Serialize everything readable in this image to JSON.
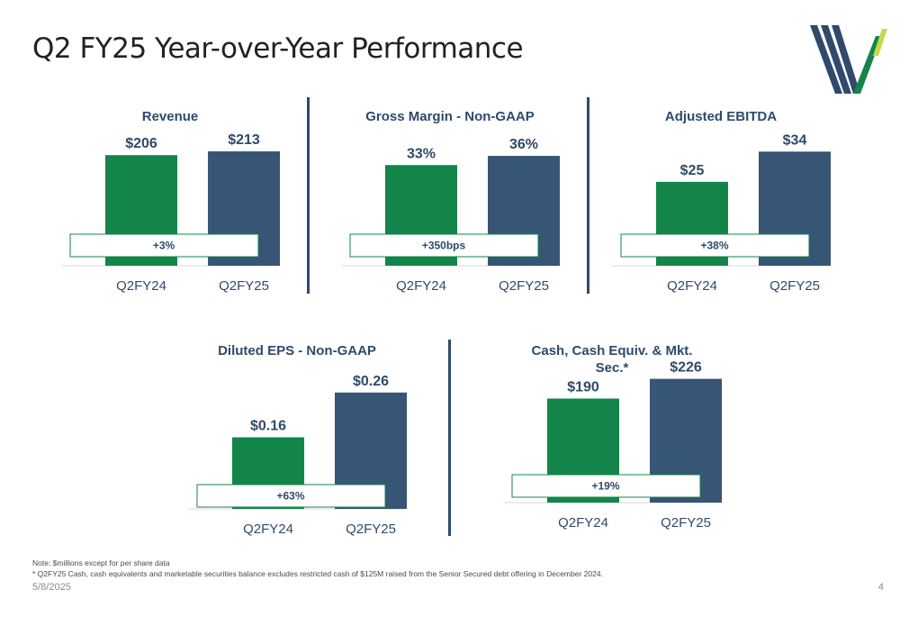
{
  "title": "Q2 FY25 Year-over-Year Performance",
  "colors": {
    "prior_year": "#14854a",
    "current_year": "#375574",
    "text": "#2f4a6a",
    "logo_blue": "#2f4a6a",
    "logo_green": "#14854a",
    "logo_lime": "#c5d94a"
  },
  "logo": {
    "icon": "stylized-w-stripes-logo"
  },
  "chart_data": [
    {
      "type": "bar",
      "title": "Revenue",
      "categories": [
        "Q2FY24",
        "Q2FY25"
      ],
      "values": [
        206,
        213
      ],
      "value_labels": [
        "$206",
        "$213"
      ],
      "change_label": "+3%",
      "ylim": [
        0,
        250
      ],
      "grid": false,
      "legend": "none"
    },
    {
      "type": "bar",
      "title": "Gross Margin - Non-GAAP",
      "categories": [
        "Q2FY24",
        "Q2FY25"
      ],
      "values": [
        33,
        36
      ],
      "value_labels": [
        "33%",
        "36%"
      ],
      "change_label": "+350bps",
      "ylim": [
        0,
        44
      ],
      "grid": false,
      "legend": "none"
    },
    {
      "type": "bar",
      "title": "Adjusted EBITDA",
      "categories": [
        "Q2FY24",
        "Q2FY25"
      ],
      "values": [
        25,
        34
      ],
      "value_labels": [
        "$25",
        "$34"
      ],
      "change_label": "+38%",
      "ylim": [
        0,
        40
      ],
      "grid": false,
      "legend": "none"
    },
    {
      "type": "bar",
      "title": "Diluted EPS - Non-GAAP",
      "categories": [
        "Q2FY24",
        "Q2FY25"
      ],
      "values": [
        0.16,
        0.26
      ],
      "value_labels": [
        "$0.16",
        "$0.26"
      ],
      "change_label": "+63%",
      "ylim": [
        0,
        0.32
      ],
      "grid": false,
      "legend": "none"
    },
    {
      "type": "bar",
      "title": "Cash, Cash Equiv. & Mkt. Sec.*",
      "title_lines": [
        "Cash, Cash Equiv. & Mkt.",
        "Sec.*"
      ],
      "categories": [
        "Q2FY24",
        "Q2FY25"
      ],
      "values": [
        190,
        226
      ],
      "value_labels": [
        "$190",
        "$226"
      ],
      "change_label": "+19%",
      "ylim": [
        0,
        250
      ],
      "grid": false,
      "legend": "none"
    }
  ],
  "footnotes": {
    "note": "Note: $millions except for per share data",
    "asterisk": "* Q2FY25 Cash, cash equivalents and marketable securities balance excludes restricted cash of $125M raised from the Senior Secured debt offering in December 2024."
  },
  "footer": {
    "date": "5/8/2025",
    "page": "4"
  }
}
